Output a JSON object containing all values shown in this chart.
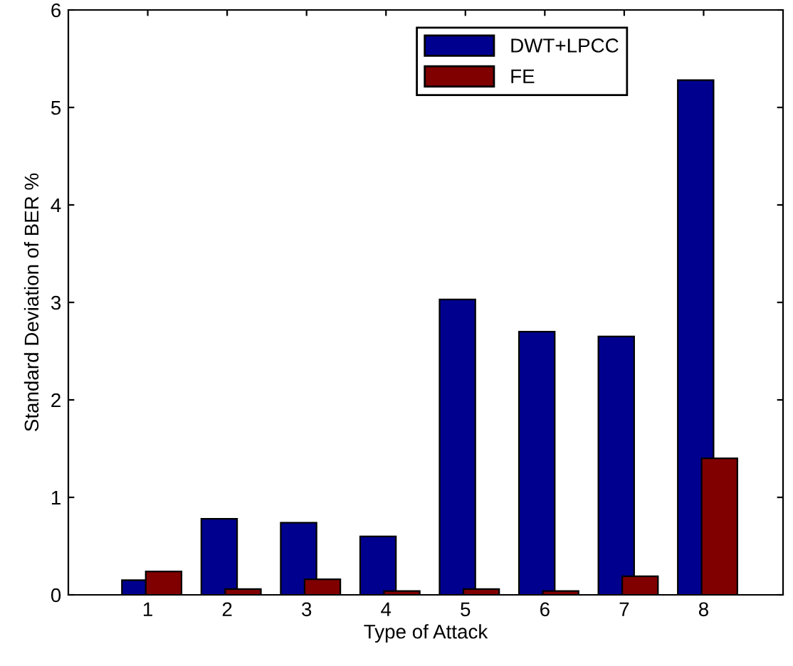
{
  "chart_data": {
    "type": "bar",
    "xlabel": "Type of Attack",
    "ylabel": "Standard Deviation of BER %",
    "categories": [
      "1",
      "2",
      "3",
      "4",
      "5",
      "6",
      "7",
      "8"
    ],
    "series": [
      {
        "name": "DWT+LPCC",
        "color": "#00008f",
        "values": [
          0.15,
          0.78,
          0.74,
          0.6,
          3.03,
          2.7,
          2.65,
          5.28
        ]
      },
      {
        "name": "FE",
        "color": "#800000",
        "values": [
          0.24,
          0.06,
          0.16,
          0.04,
          0.06,
          0.04,
          0.19,
          1.4
        ]
      }
    ],
    "ylim": [
      0,
      6
    ],
    "yticks": [
      0,
      1,
      2,
      3,
      4,
      5,
      6
    ],
    "grid": false,
    "legend": "top right"
  }
}
